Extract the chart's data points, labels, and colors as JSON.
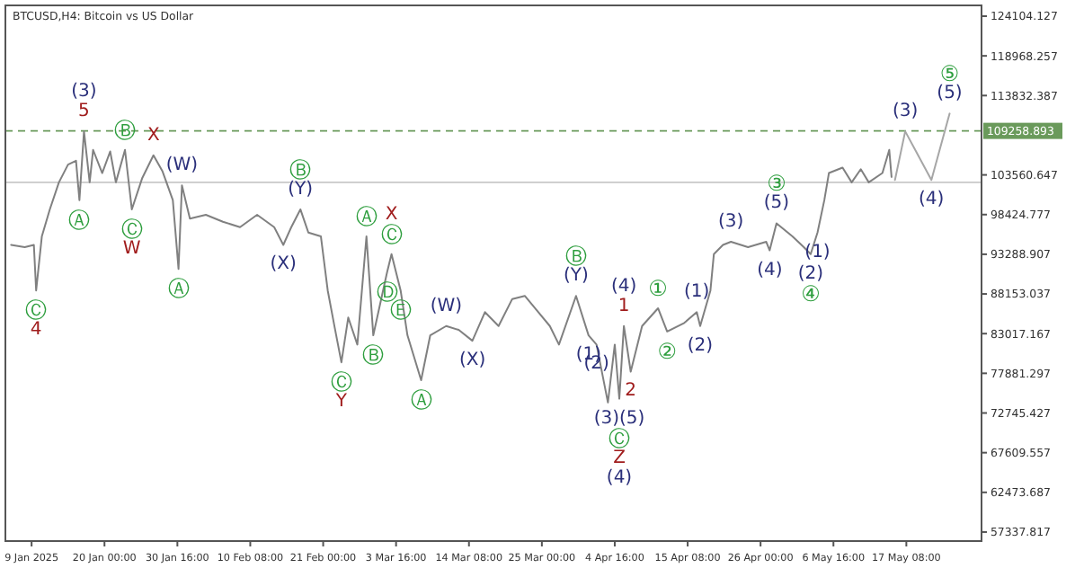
{
  "chart_data": {
    "type": "line",
    "title": "BTCUSD,H4: Bitcoin vs US Dollar",
    "xlim": [
      "2025-01-05T12:00",
      "2025-05-28T08:00"
    ],
    "ylim": [
      56170,
      125500
    ],
    "xticks": [
      {
        "value": "2025-01-09T08:00",
        "label": "9 Jan 2025"
      },
      {
        "value": "2025-01-20T00:00",
        "label": "20 Jan 00:00"
      },
      {
        "value": "2025-01-30T16:00",
        "label": "30 Jan 16:00"
      },
      {
        "value": "2025-02-10T08:00",
        "label": "10 Feb 08:00"
      },
      {
        "value": "2025-02-21T00:00",
        "label": "21 Feb 00:00"
      },
      {
        "value": "2025-03-03T16:00",
        "label": "3 Mar 16:00"
      },
      {
        "value": "2025-03-14T08:00",
        "label": "14 Mar 08:00"
      },
      {
        "value": "2025-03-25T00:00",
        "label": "25 Mar 00:00"
      },
      {
        "value": "2025-04-04T16:00",
        "label": "4 Apr 16:00"
      },
      {
        "value": "2025-04-15T08:00",
        "label": "15 Apr 08:00"
      },
      {
        "value": "2025-04-26T00:00",
        "label": "26 Apr 00:00"
      },
      {
        "value": "2025-05-06T16:00",
        "label": "6 May 16:00"
      },
      {
        "value": "2025-05-17T08:00",
        "label": "17 May 08:00"
      }
    ],
    "yticks": [
      57337.817,
      62473.687,
      67609.557,
      72745.427,
      77881.297,
      83017.167,
      88153.037,
      93288.907,
      98424.777,
      103560.647,
      113832.387,
      118968.257,
      124104.127
    ],
    "grid": false,
    "marker": "none",
    "line_style": "solid",
    "series": [
      {
        "color": "#808080",
        "x": [
          "2025-01-06T08:00",
          "2025-01-08T08:00",
          "2025-01-09T16:00",
          "2025-01-10T00:00",
          "2025-01-10T20:00",
          "2025-01-12T00:00",
          "2025-01-13T08:00",
          "2025-01-14T16:00",
          "2025-01-15T20:00",
          "2025-01-16T08:00",
          "2025-01-17T00:00",
          "2025-01-17T20:00",
          "2025-01-18T08:00",
          "2025-01-19T16:00",
          "2025-01-20T20:00",
          "2025-01-21T16:00",
          "2025-01-23T00:00",
          "2025-01-24T00:00",
          "2025-01-25T12:00",
          "2025-01-27T04:00",
          "2025-01-28T12:00",
          "2025-01-30T00:00",
          "2025-01-30T20:00",
          "2025-01-31T08:00",
          "2025-02-01T12:00",
          "2025-02-03T20:00",
          "2025-02-06T08:00",
          "2025-02-08T20:00",
          "2025-02-11T08:00",
          "2025-02-13T20:00",
          "2025-02-15T04:00",
          "2025-02-16T08:00",
          "2025-02-17T16:00",
          "2025-02-18T20:00",
          "2025-02-20T16:00",
          "2025-02-21T16:00",
          "2025-02-22T16:00",
          "2025-02-23T16:00",
          "2025-02-24T16:00",
          "2025-02-26T00:00",
          "2025-02-27T08:00",
          "2025-02-28T08:00",
          "2025-03-02T08:00",
          "2025-03-03T00:00",
          "2025-03-04T08:00",
          "2025-03-05T08:00",
          "2025-03-07T08:00",
          "2025-03-08T16:00",
          "2025-03-11T00:00",
          "2025-03-12T20:00",
          "2025-03-14T20:00",
          "2025-03-16T16:00",
          "2025-03-18T16:00",
          "2025-03-20T16:00",
          "2025-03-22T12:00",
          "2025-03-24T00:00",
          "2025-03-26T04:00",
          "2025-03-27T12:00",
          "2025-03-30T00:00",
          "2025-03-31T20:00",
          "2025-04-02T00:00",
          "2025-04-03T16:00",
          "2025-04-04T16:00",
          "2025-04-05T08:00",
          "2025-04-06T00:00",
          "2025-04-07T00:00",
          "2025-04-08T16:00",
          "2025-04-11T00:00",
          "2025-04-12T08:00",
          "2025-04-14T20:00",
          "2025-04-16T16:00",
          "2025-04-17T04:00",
          "2025-04-18T16:00",
          "2025-04-19T04:00",
          "2025-04-20T12:00",
          "2025-04-21T16:00",
          "2025-04-24T04:00",
          "2025-04-26T20:00",
          "2025-04-27T08:00",
          "2025-04-28T08:00",
          "2025-04-30T16:00",
          "2025-05-02T08:00",
          "2025-05-03T08:00",
          "2025-05-04T08:00",
          "2025-05-05T08:00",
          "2025-05-06T00:00",
          "2025-05-08T00:00",
          "2025-05-09T08:00",
          "2025-05-10T16:00",
          "2025-05-11T20:00",
          "2025-05-13T20:00",
          "2025-05-14T20:00",
          "2025-05-15T04:00"
        ],
        "values": [
          94500,
          94200,
          94500,
          88600,
          95600,
          99100,
          102600,
          104900,
          105400,
          100300,
          109200,
          102600,
          106800,
          103800,
          106600,
          102600,
          106800,
          99100,
          103100,
          106100,
          104000,
          100300,
          91400,
          102200,
          97900,
          98400,
          97500,
          96800,
          98400,
          96800,
          94500,
          96800,
          99100,
          96100,
          95600,
          88600,
          83900,
          79300,
          85100,
          81600,
          95600,
          82800,
          90900,
          93300,
          88600,
          82800,
          77000,
          82800,
          84000,
          83500,
          82100,
          85800,
          84000,
          87500,
          87900,
          86300,
          84000,
          81600,
          87900,
          82800,
          81600,
          74100,
          81600,
          74600,
          84000,
          78100,
          84000,
          86300,
          83300,
          84400,
          85800,
          84000,
          88600,
          93300,
          94500,
          94900,
          94200,
          94900,
          93800,
          97300,
          95600,
          94200,
          93300,
          96100,
          100300,
          103800,
          104500,
          102600,
          104300,
          102600,
          103800,
          106800,
          103300
        ]
      },
      {
        "color": "#a6a6a6",
        "x": [
          "2025-05-15T16:00",
          "2025-05-17T04:00",
          "2025-05-21T00:00",
          "2025-05-23T16:00"
        ],
        "values": [
          102900,
          109200,
          102900,
          111500
        ]
      }
    ],
    "ref_lines": [
      {
        "axis": "y",
        "value": 109258.893,
        "label": "109258.893",
        "color": "#6a9a5b",
        "line_style": "dashed"
      },
      {
        "axis": "y",
        "value": 102600,
        "color": "#c8c8c8",
        "line_style": "solid"
      }
    ],
    "annotations": [
      {
        "text": "Ⓒ",
        "x": "2025-01-10T00:00",
        "y": 88600
      },
      {
        "text": "4",
        "x": "2025-01-10T00:00",
        "y": 88600
      },
      {
        "text": "Ⓐ",
        "x": "2025-01-16T08:00",
        "y": 100300
      },
      {
        "text": "5",
        "x": "2025-01-17T00:00",
        "y": 109200
      },
      {
        "text": "(3)",
        "x": "2025-01-17T00:00",
        "y": 109200
      },
      {
        "text": "Ⓑ",
        "x": "2025-01-23T00:00",
        "y": 106800
      },
      {
        "text": "Ⓒ",
        "x": "2025-01-24T00:00",
        "y": 99100
      },
      {
        "text": "W",
        "x": "2025-01-24T00:00",
        "y": 99100
      },
      {
        "text": "X",
        "x": "2025-01-27T04:00",
        "y": 106100
      },
      {
        "text": "Ⓐ",
        "x": "2025-01-30T20:00",
        "y": 91400
      },
      {
        "text": "(W)",
        "x": "2025-01-31T08:00",
        "y": 102200
      },
      {
        "text": "(X)",
        "x": "2025-02-15T04:00",
        "y": 94500
      },
      {
        "text": "(Y)",
        "x": "2025-02-17T16:00",
        "y": 99100
      },
      {
        "text": "Ⓑ",
        "x": "2025-02-17T16:00",
        "y": 99100
      },
      {
        "text": "Ⓒ",
        "x": "2025-02-23T16:00",
        "y": 79300
      },
      {
        "text": "Y",
        "x": "2025-02-23T16:00",
        "y": 79300
      },
      {
        "text": "Ⓐ",
        "x": "2025-02-27T08:00",
        "y": 95600
      },
      {
        "text": "Ⓑ",
        "x": "2025-02-28T08:00",
        "y": 82800
      },
      {
        "text": "Ⓓ",
        "x": "2025-03-02T08:00",
        "y": 90900
      },
      {
        "text": "Ⓒ",
        "x": "2025-03-03T00:00",
        "y": 93300
      },
      {
        "text": "X",
        "x": "2025-03-03T00:00",
        "y": 93300
      },
      {
        "text": "Ⓔ",
        "x": "2025-03-04T08:00",
        "y": 88600
      },
      {
        "text": "Ⓐ",
        "x": "2025-03-07T08:00",
        "y": 77000
      },
      {
        "text": "(W)",
        "x": "2025-03-11T00:00",
        "y": 84000
      },
      {
        "text": "(X)",
        "x": "2025-03-14T20:00",
        "y": 82100
      },
      {
        "text": "(Y)",
        "x": "2025-03-30T00:00",
        "y": 87900
      },
      {
        "text": "Ⓑ",
        "x": "2025-03-30T00:00",
        "y": 87900
      },
      {
        "text": "(1)",
        "x": "2025-03-31T20:00",
        "y": 82800
      },
      {
        "text": "(2)",
        "x": "2025-04-02T00:00",
        "y": 81600
      },
      {
        "text": "(3)(5)",
        "x": "2025-04-05T08:00",
        "y": 74600
      },
      {
        "text": "Ⓒ",
        "x": "2025-04-05T08:00",
        "y": 74600
      },
      "Z",
      "(4)",
      {
        "text": "1",
        "x": "2025-04-06T00:00",
        "y": 84000
      },
      "(4)",
      {
        "text": "2",
        "x": "2025-04-07T00:00",
        "y": 78100
      },
      {
        "text": "①",
        "x": "2025-04-11T00:00",
        "y": 86300
      },
      {
        "text": "②",
        "x": "2025-04-12T08:00",
        "y": 83300
      },
      {
        "text": "(1)",
        "x": "2025-04-16T16:00",
        "y": 85800
      },
      {
        "text": "(2)",
        "x": "2025-04-17T04:00",
        "y": 84000
      },
      {
        "text": "(3)",
        "x": "2025-04-21T16:00",
        "y": 94900
      },
      {
        "text": "(4)",
        "x": "2025-04-27T08:00",
        "y": 93800
      },
      {
        "text": "(5)",
        "x": "2025-04-28T08:00",
        "y": 97300
      },
      {
        "text": "③",
        "x": "2025-04-28T08:00",
        "y": 97300
      },
      {
        "text": "(1)",
        "x": "2025-05-04T08:00",
        "y": 96100
      },
      {
        "text": "(2)",
        "x": "2025-05-03T08:00",
        "y": 93300
      },
      {
        "text": "④",
        "x": "2025-05-03T08:00",
        "y": 93300
      },
      {
        "text": "(3)",
        "x": "2025-05-17T04:00",
        "y": 109200
      },
      {
        "text": "(4)",
        "x": "2025-05-21T00:00",
        "y": 102900
      },
      {
        "text": "(5)",
        "x": "2025-05-23T16:00",
        "y": 111500
      },
      {
        "text": "⑤",
        "x": "2025-05-23T16:00",
        "y": 111500
      }
    ]
  }
}
